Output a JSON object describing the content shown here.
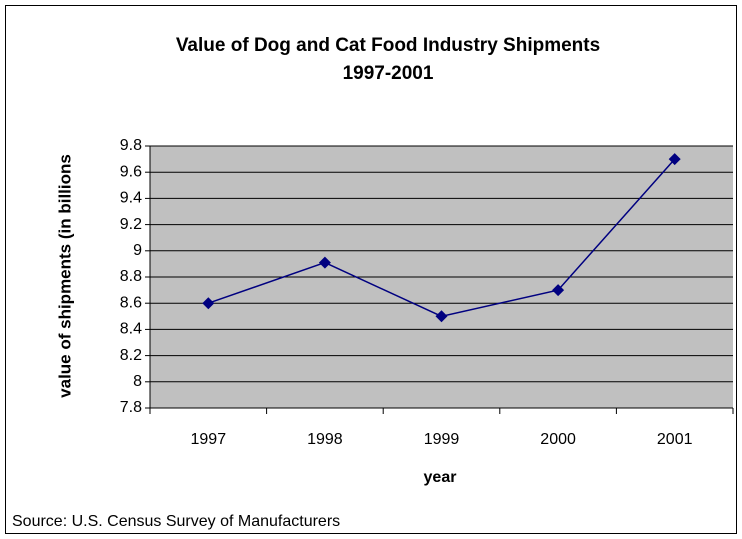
{
  "chart_data": {
    "type": "line",
    "title": "Value of Dog and Cat Food Industry Shipments",
    "subtitle": "1997-2001",
    "x_label": "year",
    "y_label": "value of shipments (in billions",
    "source": "Source: U.S. Census Survey of Manufacturers",
    "categories": [
      "1997",
      "1998",
      "1999",
      "2000",
      "2001"
    ],
    "series": [
      {
        "name": "value of shipments",
        "color": "#000080",
        "values": [
          8.6,
          8.91,
          8.5,
          8.7,
          9.7
        ]
      }
    ],
    "ylim": [
      7.8,
      9.8
    ],
    "yticks": [
      7.8,
      8,
      8.2,
      8.4,
      8.6,
      8.8,
      9,
      9.2,
      9.4,
      9.6,
      9.8
    ],
    "grid": true,
    "plot_background": "#c0c0c0"
  }
}
